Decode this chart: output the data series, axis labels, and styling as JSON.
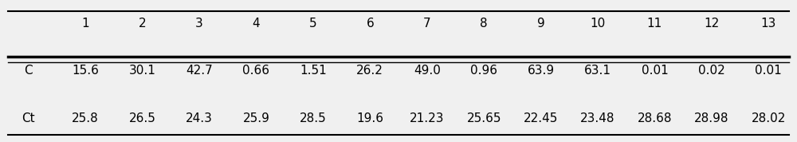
{
  "col_headers": [
    "",
    "1",
    "2",
    "3",
    "4",
    "5",
    "6",
    "7",
    "8",
    "9",
    "10",
    "11",
    "12",
    "13"
  ],
  "rows": [
    [
      "C",
      "15.6",
      "30.1",
      "42.7",
      "0.66",
      "1.51",
      "26.2",
      "49.0",
      "0.96",
      "63.9",
      "63.1",
      "0.01",
      "0.02",
      "0.01"
    ],
    [
      "Ct",
      "25.8",
      "26.5",
      "24.3",
      "25.9",
      "28.5",
      "19.6",
      "21.23",
      "25.65",
      "22.45",
      "23.48",
      "28.68",
      "28.98",
      "28.02"
    ]
  ],
  "background_color": "#f0f0f0",
  "table_bg": "#ffffff",
  "font_size": 11,
  "header_font_size": 11
}
